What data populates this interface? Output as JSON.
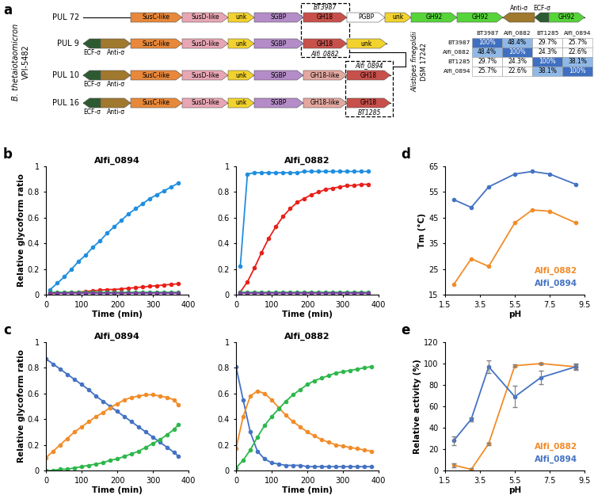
{
  "panel_labels": [
    "a",
    "b",
    "c",
    "d",
    "e"
  ],
  "diagram": {
    "left_label": [
      "B. thetaiotaomicron",
      "VPI-5482"
    ],
    "right_label": [
      "Alistipes finegoldii",
      "DSM 17242"
    ],
    "rows": [
      {
        "label": "PUL 72",
        "genes": [
          {
            "label": "SusC-like",
            "color": "#E8883A"
          },
          {
            "label": "SusD-like",
            "color": "#E8A6B4"
          },
          {
            "label": "unk",
            "color": "#F2D22E"
          },
          {
            "label": "SGBP",
            "color": "#B48CC8"
          },
          {
            "label": "GH18",
            "color": "#C8504A"
          },
          {
            "label": "PGBP",
            "color": "#FFFFFF"
          },
          {
            "label": "unk",
            "color": "#F2D22E"
          },
          {
            "label": "GH92",
            "color": "#57D43A"
          },
          {
            "label": "GH92",
            "color": "#57D43A"
          },
          {
            "label": "Anti-σ",
            "color": "#A0782E",
            "reverse": true
          },
          {
            "label": "ECF-σ",
            "color": "#2E5A32",
            "reverse": true
          },
          {
            "label": "GH92",
            "color": "#57D43A"
          }
        ]
      },
      {
        "label": "PUL 9",
        "genes": [
          {
            "label": "ECF-σ",
            "color": "#2E5A32",
            "reverse": true
          },
          {
            "label": "Anti-σ",
            "color": "#A0782E"
          },
          {
            "label": "SusC-like",
            "color": "#E8883A"
          },
          {
            "label": "SusD-like",
            "color": "#E8A6B4"
          },
          {
            "label": "unk",
            "color": "#F2D22E"
          },
          {
            "label": "SGBP",
            "color": "#B48CC8"
          },
          {
            "label": "GH18",
            "color": "#C8504A"
          },
          {
            "label": "unk",
            "color": "#F2D22E"
          }
        ]
      },
      {
        "label": "PUL 10",
        "genes": [
          {
            "label": "ECF-σ",
            "color": "#2E5A32",
            "reverse": true
          },
          {
            "label": "Anti-σ",
            "color": "#A0782E"
          },
          {
            "label": "SusC-like",
            "color": "#E8883A"
          },
          {
            "label": "SusD-like",
            "color": "#E8A6B4"
          },
          {
            "label": "unk",
            "color": "#F2D22E"
          },
          {
            "label": "SGBP",
            "color": "#B48CC8"
          },
          {
            "label": "GH18-like",
            "color": "#E4A8A0"
          },
          {
            "label": "GH18",
            "color": "#C8504A"
          }
        ]
      },
      {
        "label": "PUL 16",
        "genes": [
          {
            "label": "ECF-σ",
            "color": "#2E5A32",
            "reverse": true
          },
          {
            "label": "Anti-σ",
            "color": "#A0782E"
          },
          {
            "label": "SusC-like",
            "color": "#E8883A"
          },
          {
            "label": "SusD-like",
            "color": "#E8A6B4"
          },
          {
            "label": "unk",
            "color": "#F2D22E"
          },
          {
            "label": "SGBP",
            "color": "#B48CC8"
          },
          {
            "label": "GH18-like",
            "color": "#E4A8A0"
          },
          {
            "label": "GH18",
            "color": "#C8504A"
          }
        ]
      }
    ],
    "boxes": [
      {
        "top": "BT3987",
        "bottom": "Alfi_0882"
      },
      {
        "top": "Alfi_0894",
        "bottom": "BT1285"
      }
    ]
  },
  "table": {
    "columns": [
      "BT3987",
      "Alfi_0882",
      "BT1285",
      "Alfi_0894"
    ],
    "rows": [
      {
        "label": "BT3987",
        "cells": [
          "100%",
          "48.4%",
          "29.7%",
          "25.7%"
        ]
      },
      {
        "label": "Alfi_0882",
        "cells": [
          "48.4%",
          "100%",
          "24.3%",
          "22.6%"
        ]
      },
      {
        "label": "BT1285",
        "cells": [
          "29.7%",
          "24.3%",
          "100%",
          "38.1%"
        ]
      },
      {
        "label": "Alfi_0894",
        "cells": [
          "25.7%",
          "22.6%",
          "38.1%",
          "100%"
        ]
      }
    ],
    "cell_colors": [
      [
        "#3F6FC0",
        "#8FB8E6",
        "#FFFFFF",
        "#FFFFFF"
      ],
      [
        "#8FB8E6",
        "#3F6FC0",
        "#FFFFFF",
        "#FFFFFF"
      ],
      [
        "#FFFFFF",
        "#FFFFFF",
        "#3F6FC0",
        "#8FB8E6"
      ],
      [
        "#FFFFFF",
        "#FFFFFF",
        "#8FB8E6",
        "#3F6FC0"
      ]
    ]
  },
  "chart_data": [
    {
      "type": "line",
      "title": "Alfi_0894",
      "x_label": "Time (min)",
      "y_label": "Relative glycoform ratio",
      "x": [
        12,
        32,
        52,
        72,
        92,
        112,
        132,
        152,
        172,
        192,
        212,
        232,
        252,
        272,
        292,
        312,
        332,
        352,
        372
      ],
      "series": [
        {
          "color": "#1F8FE0",
          "marker": "circle",
          "values": [
            0.04,
            0.09,
            0.14,
            0.2,
            0.26,
            0.31,
            0.37,
            0.42,
            0.48,
            0.53,
            0.58,
            0.63,
            0.67,
            0.71,
            0.75,
            0.78,
            0.81,
            0.84,
            0.87
          ]
        },
        {
          "color": "#E8201A",
          "marker": "circle",
          "values": [
            0.01,
            0.01,
            0.015,
            0.02,
            0.02,
            0.025,
            0.03,
            0.035,
            0.04,
            0.04,
            0.045,
            0.05,
            0.055,
            0.06,
            0.065,
            0.07,
            0.075,
            0.08,
            0.085
          ]
        },
        {
          "color": "#1CB84A",
          "marker": "circle",
          "values": [
            0.02,
            0.02,
            0.02,
            0.02,
            0.02,
            0.02,
            0.02,
            0.02,
            0.02,
            0.02,
            0.02,
            0.02,
            0.02,
            0.02,
            0.02,
            0.02,
            0.02,
            0.02,
            0.02
          ]
        },
        {
          "color": "#7B3FA0",
          "marker": "circle",
          "values": [
            0.01,
            0.01,
            0.01,
            0.01,
            0.01,
            0.01,
            0.01,
            0.01,
            0.01,
            0.01,
            0.01,
            0.01,
            0.01,
            0.01,
            0.01,
            0.01,
            0.01,
            0.01,
            0.01
          ]
        }
      ],
      "xlim": [
        0,
        400
      ],
      "xticks": [
        0,
        100,
        200,
        300,
        400
      ],
      "ylim": [
        0,
        1
      ],
      "yticks": [
        0,
        0.2,
        0.4,
        0.6,
        0.8,
        1
      ],
      "grid": false
    },
    {
      "type": "line",
      "title": "Alfi_0882",
      "x_label": "Time (min)",
      "x": [
        12,
        32,
        52,
        72,
        92,
        112,
        132,
        152,
        172,
        192,
        212,
        232,
        252,
        272,
        292,
        312,
        332,
        352,
        372
      ],
      "series": [
        {
          "color": "#1F8FE0",
          "marker": "circle",
          "values": [
            0.22,
            0.94,
            0.95,
            0.95,
            0.95,
            0.95,
            0.95,
            0.95,
            0.95,
            0.96,
            0.96,
            0.96,
            0.96,
            0.96,
            0.96,
            0.96,
            0.96,
            0.96,
            0.96
          ]
        },
        {
          "color": "#E8201A",
          "marker": "circle",
          "values": [
            0.02,
            0.1,
            0.21,
            0.33,
            0.44,
            0.53,
            0.61,
            0.67,
            0.72,
            0.75,
            0.78,
            0.8,
            0.82,
            0.83,
            0.84,
            0.85,
            0.85,
            0.86,
            0.86
          ]
        },
        {
          "color": "#1CB84A",
          "marker": "circle",
          "values": [
            0.02,
            0.02,
            0.02,
            0.02,
            0.02,
            0.02,
            0.02,
            0.02,
            0.02,
            0.02,
            0.02,
            0.02,
            0.02,
            0.02,
            0.02,
            0.02,
            0.02,
            0.02,
            0.02
          ]
        },
        {
          "color": "#7B3FA0",
          "marker": "circle",
          "values": [
            0.01,
            0.01,
            0.01,
            0.01,
            0.01,
            0.01,
            0.01,
            0.01,
            0.01,
            0.01,
            0.01,
            0.01,
            0.01,
            0.01,
            0.01,
            0.01,
            0.01,
            0.01,
            0.01
          ]
        }
      ],
      "xlim": [
        0,
        400
      ],
      "xticks": [
        0,
        100,
        200,
        300,
        400
      ],
      "ylim": [
        0,
        1
      ],
      "yticks": [
        0,
        0.2,
        0.4,
        0.6,
        0.8,
        1
      ],
      "grid": false
    },
    {
      "type": "line",
      "title": "Alfi_0894",
      "x_label": "Time (min)",
      "y_label": "Relative glycoform ratio",
      "x": [
        0,
        20,
        40,
        60,
        80,
        100,
        120,
        140,
        160,
        180,
        200,
        220,
        240,
        260,
        280,
        300,
        320,
        340,
        360,
        372
      ],
      "series": [
        {
          "color": "#4472C4",
          "marker": "circle",
          "values": [
            0.87,
            0.83,
            0.79,
            0.75,
            0.71,
            0.67,
            0.63,
            0.58,
            0.54,
            0.5,
            0.46,
            0.42,
            0.38,
            0.34,
            0.3,
            0.26,
            0.22,
            0.18,
            0.14,
            0.11
          ]
        },
        {
          "color": "#F28C28",
          "marker": "circle",
          "values": [
            0.1,
            0.15,
            0.2,
            0.25,
            0.3,
            0.34,
            0.38,
            0.42,
            0.45,
            0.49,
            0.52,
            0.55,
            0.57,
            0.58,
            0.59,
            0.59,
            0.58,
            0.57,
            0.55,
            0.51
          ]
        },
        {
          "color": "#2DB84B",
          "marker": "circle",
          "values": [
            0.0,
            0.0,
            0.01,
            0.01,
            0.02,
            0.03,
            0.04,
            0.05,
            0.06,
            0.08,
            0.09,
            0.11,
            0.13,
            0.15,
            0.18,
            0.21,
            0.24,
            0.28,
            0.32,
            0.36
          ]
        }
      ],
      "xlim": [
        0,
        400
      ],
      "xticks": [
        0,
        100,
        200,
        300,
        400
      ],
      "ylim": [
        0,
        1
      ],
      "yticks": [
        0,
        0.2,
        0.4,
        0.6,
        0.8,
        1
      ],
      "grid": false
    },
    {
      "type": "line",
      "title": "Alfi_0882",
      "x_label": "Time (min)",
      "x": [
        0,
        20,
        40,
        60,
        80,
        100,
        120,
        140,
        160,
        180,
        200,
        220,
        240,
        260,
        280,
        300,
        320,
        340,
        360,
        380
      ],
      "series": [
        {
          "color": "#4472C4",
          "marker": "circle",
          "values": [
            0.81,
            0.55,
            0.3,
            0.15,
            0.09,
            0.06,
            0.05,
            0.04,
            0.04,
            0.04,
            0.03,
            0.03,
            0.03,
            0.03,
            0.03,
            0.03,
            0.03,
            0.03,
            0.03,
            0.03
          ]
        },
        {
          "color": "#F28C28",
          "marker": "circle",
          "values": [
            0.17,
            0.42,
            0.58,
            0.62,
            0.6,
            0.55,
            0.49,
            0.43,
            0.38,
            0.34,
            0.3,
            0.27,
            0.24,
            0.22,
            0.2,
            0.19,
            0.18,
            0.17,
            0.16,
            0.15
          ]
        },
        {
          "color": "#2DB84B",
          "marker": "circle",
          "values": [
            0.02,
            0.08,
            0.16,
            0.26,
            0.35,
            0.42,
            0.48,
            0.54,
            0.59,
            0.63,
            0.67,
            0.7,
            0.72,
            0.74,
            0.76,
            0.77,
            0.78,
            0.79,
            0.8,
            0.81
          ]
        }
      ],
      "xlim": [
        0,
        400
      ],
      "xticks": [
        0,
        100,
        200,
        300,
        400
      ],
      "ylim": [
        0,
        1
      ],
      "yticks": [
        0,
        0.2,
        0.4,
        0.6,
        0.8,
        1
      ],
      "grid": false
    },
    {
      "type": "line",
      "x_label": "pH",
      "y_label": "Tm (°C)",
      "x": [
        2,
        3,
        4,
        5.5,
        6.5,
        7.5,
        9
      ],
      "series": [
        {
          "name": "Alfi_0882",
          "color": "#F28C28",
          "marker": "circle",
          "values": [
            19,
            29,
            26,
            43,
            48,
            47.5,
            43
          ]
        },
        {
          "name": "Alfi_0894",
          "color": "#4472C4",
          "marker": "circle",
          "values": [
            52,
            49,
            57,
            62,
            63,
            62,
            58
          ]
        }
      ],
      "xlim": [
        1.5,
        9.5
      ],
      "xticks": [
        1.5,
        3.5,
        5.5,
        7.5,
        9.5
      ],
      "ylim": [
        15,
        65
      ],
      "yticks": [
        15,
        25,
        35,
        45,
        55,
        65
      ],
      "legend": "lower right",
      "grid": false
    },
    {
      "type": "line",
      "x_label": "pH",
      "y_label": "Relative activity (%)",
      "x": [
        2,
        3,
        4,
        5.5,
        7,
        9
      ],
      "series": [
        {
          "name": "Alfi_0882",
          "color": "#F28C28",
          "marker": "circle",
          "values": [
            5,
            1,
            25,
            98,
            100,
            97
          ],
          "errors": [
            2,
            1,
            1,
            1,
            1,
            2
          ]
        },
        {
          "name": "Alfi_0894",
          "color": "#4472C4",
          "marker": "circle",
          "values": [
            28,
            48,
            97,
            69,
            87,
            97
          ],
          "errors": [
            4,
            2,
            6,
            10,
            6,
            3
          ]
        }
      ],
      "xlim": [
        1.5,
        9.5
      ],
      "xticks": [
        1.5,
        3.5,
        5.5,
        7.5,
        9.5
      ],
      "ylim": [
        0,
        120
      ],
      "yticks": [
        0,
        20,
        40,
        60,
        80,
        100,
        120
      ],
      "legend": "lower right",
      "grid": false
    }
  ]
}
